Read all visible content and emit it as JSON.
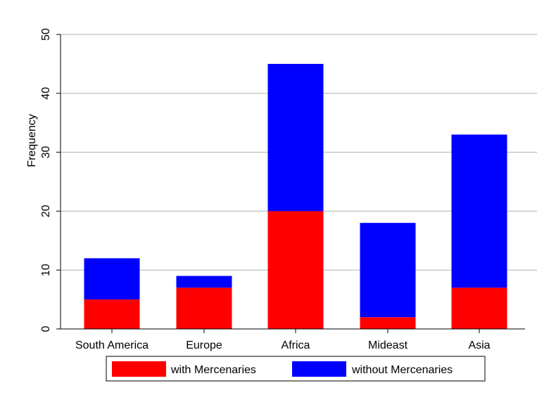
{
  "chart_data": {
    "type": "bar",
    "stacked": true,
    "categories": [
      "South America",
      "Europe",
      "Africa",
      "Mideast",
      "Asia"
    ],
    "series": [
      {
        "name": "with Mercenaries",
        "values": [
          5,
          7,
          20,
          2,
          7
        ],
        "color": "#ff0000"
      },
      {
        "name": "without Mercenaries",
        "values": [
          7,
          2,
          25,
          16,
          26
        ],
        "color": "#0000ff"
      }
    ],
    "title": "",
    "xlabel": "",
    "ylabel": "Frequency",
    "ylim": [
      0,
      50
    ],
    "yticks": [
      0,
      10,
      20,
      30,
      40,
      50
    ],
    "ytick_labels": [
      "0",
      "10",
      "20",
      "30",
      "40",
      "50"
    ],
    "grid": true,
    "legend_position": "bottom"
  }
}
